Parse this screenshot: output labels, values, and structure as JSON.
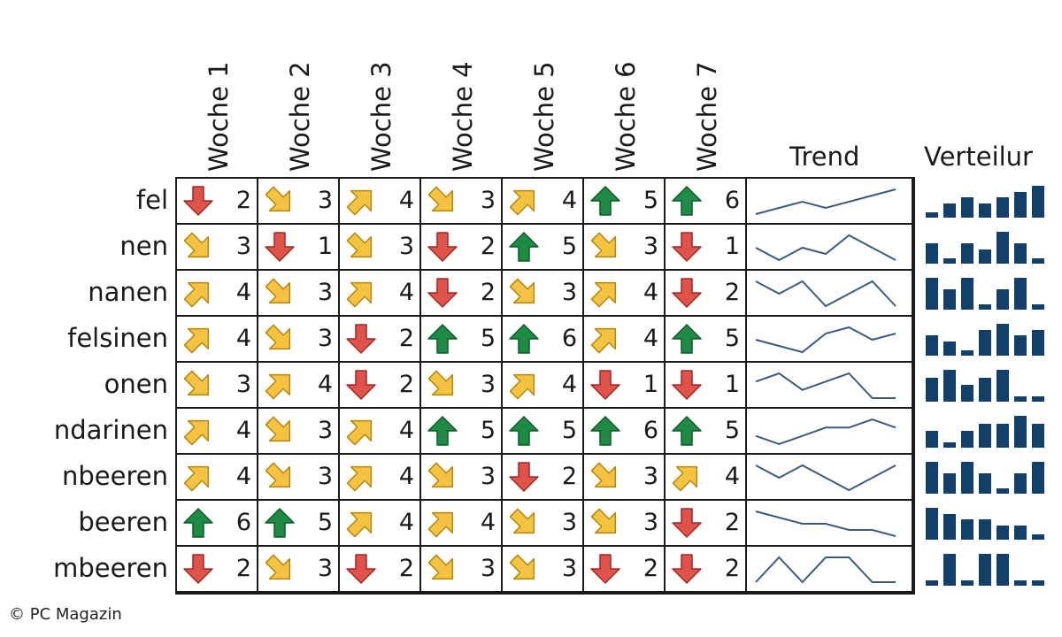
{
  "chart_data": {
    "type": "table",
    "columns": [
      "Woche 1",
      "Woche 2",
      "Woche 3",
      "Woche 4",
      "Woche 5",
      "Woche 6",
      "Woche 7"
    ],
    "trend_header": "Trend",
    "distribution_header": "Verteilur",
    "rows": [
      {
        "label": "fel",
        "values": [
          2,
          3,
          4,
          3,
          4,
          5,
          6
        ]
      },
      {
        "label": "nen",
        "values": [
          3,
          1,
          3,
          2,
          5,
          3,
          1
        ]
      },
      {
        "label": "nanen",
        "values": [
          4,
          3,
          4,
          2,
          3,
          4,
          2
        ]
      },
      {
        "label": "felsinen",
        "values": [
          4,
          3,
          2,
          5,
          6,
          4,
          5
        ]
      },
      {
        "label": "onen",
        "values": [
          3,
          4,
          2,
          3,
          4,
          1,
          1
        ]
      },
      {
        "label": "ndarinen",
        "values": [
          4,
          3,
          4,
          5,
          5,
          6,
          5
        ]
      },
      {
        "label": "nbeeren",
        "values": [
          4,
          3,
          4,
          3,
          2,
          3,
          4
        ]
      },
      {
        "label": "beeren",
        "values": [
          6,
          5,
          4,
          4,
          3,
          3,
          2
        ]
      },
      {
        "label": "mbeeren",
        "values": [
          2,
          3,
          2,
          3,
          3,
          2,
          2
        ]
      }
    ],
    "icon_set": {
      "1": "arrow-down-red",
      "2": "arrow-down-red",
      "3": "arrow-down-right-yellow",
      "4": "arrow-up-right-yellow",
      "5": "arrow-up-green",
      "6": "arrow-up-green"
    },
    "colors": {
      "red": "#e0534a",
      "yellow": "#f5c342",
      "green": "#1e8c46",
      "sparkline": "#3d5a80",
      "bars": "#12406b"
    }
  },
  "copyright": "© PC Magazin"
}
